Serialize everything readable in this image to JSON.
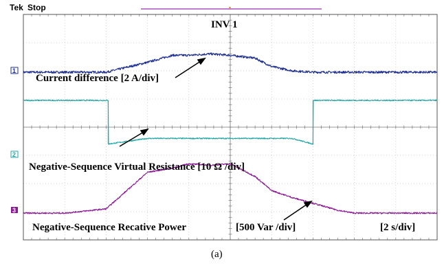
{
  "header": {
    "brand": "Tek",
    "state": "Stop",
    "accent": "#9b2fae"
  },
  "figure_caption": "(a)",
  "chart_data": {
    "type": "line",
    "title": "INV 1",
    "time_scale": "[2 s/div]",
    "grid": true,
    "x_divisions": 10,
    "y_divisions": 8,
    "x": [
      0,
      1,
      2,
      3,
      3.6,
      4,
      4.5,
      5,
      5.6,
      6,
      6.5,
      7,
      7.6,
      8,
      9,
      10
    ],
    "series": [
      {
        "name": "Current difference  [2 A/div]",
        "channel": "1",
        "color": "#1f2f8f",
        "noise": 0.04,
        "values": [
          5.95,
          5.95,
          5.95,
          6.3,
          6.55,
          6.55,
          6.6,
          6.55,
          6.45,
          6.15,
          6.0,
          5.95,
          5.95,
          5.95,
          5.95,
          5.95
        ]
      },
      {
        "name": "Negative-Sequence Virtual Resistance  [10 Ω /div]",
        "channel": "2",
        "color": "#22a6a4",
        "noise": 0.02,
        "steps": [
          [
            0,
            4.95
          ],
          [
            2.05,
            4.95
          ],
          [
            2.05,
            3.4
          ],
          [
            3.0,
            3.6
          ],
          [
            6.5,
            3.6
          ],
          [
            7.0,
            3.4
          ],
          [
            7.0,
            4.95
          ],
          [
            10,
            4.95
          ]
        ]
      },
      {
        "name": "Negative-Sequence Recative Power  [500 Var /div]",
        "channel": "3",
        "color": "#8a1a94",
        "noise": 0.025,
        "values": [
          0.95,
          0.95,
          1.1,
          2.4,
          2.55,
          2.7,
          2.65,
          2.7,
          2.25,
          1.75,
          1.5,
          1.3,
          1.05,
          0.95,
          0.95,
          0.95
        ]
      }
    ],
    "annotations": [
      {
        "text": "Current difference  [2 A/div]"
      },
      {
        "text": "Negative-Sequence Virtual Resistance  [10 Ω /div]"
      },
      {
        "text": "Negative-Sequence Recative Power"
      },
      {
        "text": "[500 Var /div]"
      }
    ]
  }
}
